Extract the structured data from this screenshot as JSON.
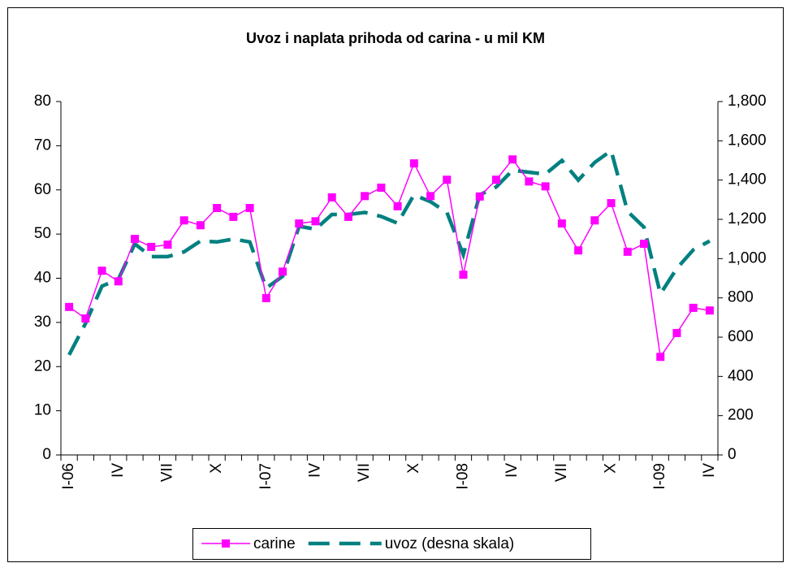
{
  "chart_data": {
    "type": "line",
    "title": "Uvoz i naplata prihoda od carina - u mil KM",
    "categories": [
      "I-06",
      null,
      null,
      "IV",
      null,
      null,
      "VII",
      null,
      null,
      "X",
      null,
      null,
      "I-07",
      null,
      null,
      "IV",
      null,
      null,
      "VII",
      null,
      null,
      "X",
      null,
      null,
      "I-08",
      null,
      null,
      "IV",
      null,
      null,
      "VII",
      null,
      null,
      "X",
      null,
      null,
      "I-09",
      null,
      null,
      "IV"
    ],
    "series": [
      {
        "name": "carine",
        "color": "#ff00ff",
        "marker": "square",
        "values": [
          33.5,
          30.9,
          41.7,
          39.3,
          48.9,
          47.1,
          47.6,
          53.1,
          52.0,
          55.9,
          53.9,
          55.9,
          35.5,
          41.5,
          52.4,
          52.9,
          58.3,
          53.9,
          58.6,
          60.5,
          56.3,
          66.0,
          58.6,
          62.3,
          40.8,
          58.5,
          62.3,
          66.9,
          61.9,
          60.8,
          52.4,
          46.3,
          53.1,
          57.0,
          46.0,
          47.8,
          22.2,
          27.6,
          33.3,
          32.7
        ]
      },
      {
        "name": "uvoz (desna skala)",
        "color": "#008080",
        "axis": "y2",
        "dashed": true,
        "values": [
          510,
          670,
          860,
          895,
          1075,
          1010,
          1010,
          1035,
          1090,
          1085,
          1100,
          1085,
          850,
          910,
          1165,
          1150,
          1225,
          1225,
          1235,
          1215,
          1180,
          1325,
          1290,
          1235,
          1020,
          1325,
          1365,
          1450,
          1440,
          1430,
          1500,
          1400,
          1490,
          1550,
          1240,
          1160,
          820,
          950,
          1045,
          1090
        ]
      }
    ],
    "ylim": [
      0,
      80
    ],
    "yticks": [
      0,
      10,
      20,
      30,
      40,
      50,
      60,
      70,
      80
    ],
    "y2lim": [
      0,
      1800
    ],
    "y2ticks": [
      0,
      200,
      400,
      600,
      800,
      {
        "value": 1000,
        "label": "1,000"
      },
      {
        "value": 1200,
        "label": "1,200"
      },
      {
        "value": 1400,
        "label": "1,400"
      },
      {
        "value": 1600,
        "label": "1,600"
      },
      {
        "value": 1800,
        "label": "1,800"
      }
    ],
    "grid": false,
    "legend": "bottom"
  }
}
